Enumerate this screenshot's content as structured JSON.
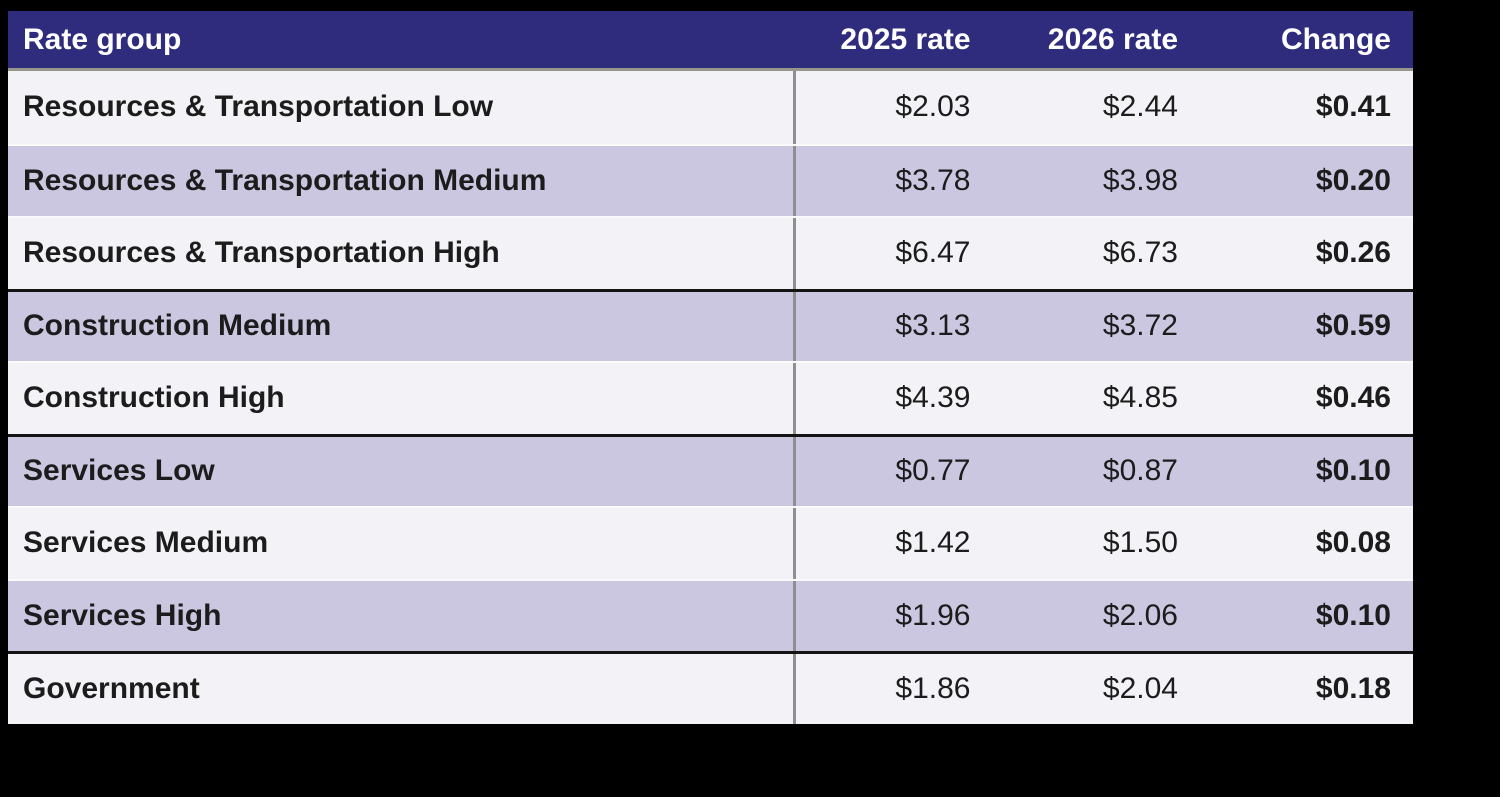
{
  "chart_data": {
    "type": "table",
    "columns": [
      "Rate group",
      "2025 rate",
      "2026 rate",
      "Change"
    ],
    "rows": [
      {
        "rate_group": "Resources & Transportation Low",
        "sector": "Resources & Transportation",
        "rate_2025": "$2.03",
        "rate_2026": "$2.44",
        "change": "$0.41"
      },
      {
        "rate_group": "Resources & Transportation Medium",
        "sector": "Resources & Transportation",
        "rate_2025": "$3.78",
        "rate_2026": "$3.98",
        "change": "$0.20"
      },
      {
        "rate_group": "Resources & Transportation High",
        "sector": "Resources & Transportation",
        "rate_2025": "$6.47",
        "rate_2026": "$6.73",
        "change": "$0.26"
      },
      {
        "rate_group": "Construction Medium",
        "sector": "Construction",
        "rate_2025": "$3.13",
        "rate_2026": "$3.72",
        "change": "$0.59"
      },
      {
        "rate_group": "Construction High",
        "sector": "Construction",
        "rate_2025": "$4.39",
        "rate_2026": "$4.85",
        "change": "$0.46"
      },
      {
        "rate_group": "Services Low",
        "sector": "Services",
        "rate_2025": "$0.77",
        "rate_2026": "$0.87",
        "change": "$0.10"
      },
      {
        "rate_group": "Services Medium",
        "sector": "Services",
        "rate_2025": "$1.42",
        "rate_2026": "$1.50",
        "change": "$0.08"
      },
      {
        "rate_group": "Services High",
        "sector": "Services",
        "rate_2025": "$1.96",
        "rate_2026": "$2.06",
        "change": "$0.10"
      },
      {
        "rate_group": "Government",
        "sector": "Government",
        "rate_2025": "$1.86",
        "rate_2026": "$2.04",
        "change": "$0.18"
      }
    ],
    "layout": {
      "row_shading": "alternating",
      "group_separators_after": [
        "Resources & Transportation High",
        "Construction High",
        "Services High"
      ]
    }
  },
  "colors": {
    "canvas": "#000000",
    "header_bg": "#2F2C7D",
    "header_text": "#FFFFFF",
    "header_separator": "#97958C",
    "row_light": "#F3F2F7",
    "row_lavender": "#CBC7E1",
    "row_separator": "#FAFAFC",
    "group_separator": "#141414",
    "column_divider": "#8F8F8F",
    "text": "#1C1C1C"
  }
}
